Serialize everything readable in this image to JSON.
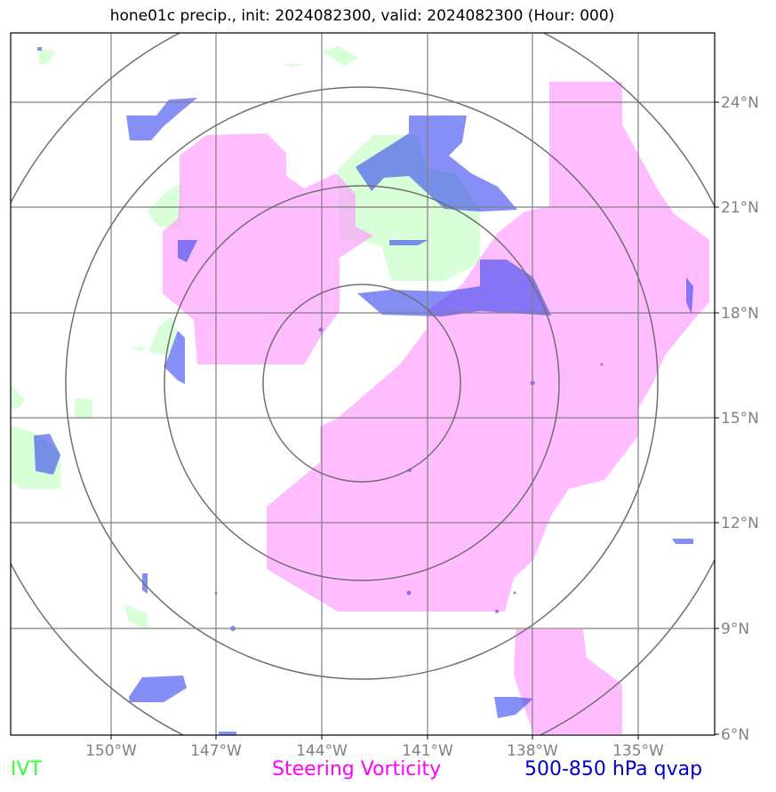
{
  "title": "hone01c precip., init: 2024082300, valid: 2024082300 (Hour: 000)",
  "lon_labels": [
    "150°W",
    "147°W",
    "144°W",
    "141°W",
    "138°W",
    "135°W"
  ],
  "lat_labels": [
    "24°N",
    "21°N",
    "18°N",
    "15°N",
    "12°N",
    "9°N",
    "6°N"
  ],
  "legend": {
    "ivt": "IVT",
    "vorticity": "Steering Vorticity",
    "qvap": "500-850 hPa qvap"
  },
  "colors": {
    "ivt": "#ccffcc",
    "vorticity": "#ff99ff",
    "qvap": "#3344ee",
    "grid": "#808080"
  }
}
